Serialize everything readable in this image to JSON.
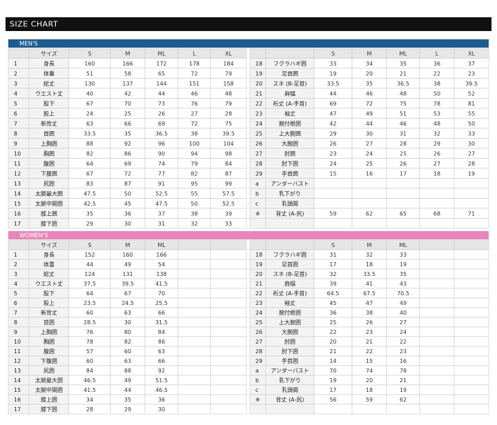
{
  "header": {
    "title": "SIZE CHART"
  },
  "men": {
    "title": "MEN'S",
    "size_label": "サイズ",
    "sizes": [
      "S",
      "M",
      "ML",
      "L",
      "XL"
    ],
    "left_rows": [
      [
        1,
        "身長",
        160,
        166,
        172,
        178,
        184
      ],
      [
        2,
        "体重",
        51,
        58,
        65,
        72,
        79
      ],
      [
        3,
        "総丈",
        130,
        137,
        144,
        151,
        158
      ],
      [
        4,
        "ウエスト丈",
        40,
        42,
        44,
        46,
        48
      ],
      [
        5,
        "股下",
        67,
        70,
        73,
        76,
        79
      ],
      [
        6,
        "股上",
        24,
        25,
        26,
        27,
        28
      ],
      [
        7,
        "新背丈",
        63,
        66,
        69,
        72,
        75
      ],
      [
        8,
        "首囲",
        33.5,
        35,
        36.5,
        38,
        39.5
      ],
      [
        9,
        "上胸囲",
        88,
        92,
        96,
        100,
        104
      ],
      [
        10,
        "胸囲",
        82,
        86,
        90,
        94,
        98
      ],
      [
        11,
        "腹囲",
        64,
        69,
        74,
        79,
        84
      ],
      [
        12,
        "下腹囲",
        67,
        72,
        77,
        82,
        87
      ],
      [
        13,
        "尻囲",
        83,
        87,
        91,
        95,
        99
      ],
      [
        14,
        "太腿最大囲",
        47.5,
        50,
        52.5,
        55,
        57.5
      ],
      [
        15,
        "太腿中間囲",
        42.5,
        45,
        47.5,
        50,
        52.5
      ],
      [
        16,
        "膝上囲",
        35,
        36,
        37,
        38,
        39
      ],
      [
        17,
        "膝下囲",
        29,
        30,
        31,
        32,
        33
      ]
    ],
    "right_rows": [
      [
        18,
        "フクラハギ囲",
        33,
        34,
        35,
        36,
        37
      ],
      [
        19,
        "足首囲",
        19,
        20,
        21,
        22,
        23
      ],
      [
        20,
        "スネ (B-足首)",
        33.5,
        35,
        36.5,
        38,
        39.5
      ],
      [
        21,
        "肩幅",
        44,
        46,
        48,
        50,
        52
      ],
      [
        22,
        "裄丈 (A-手首)",
        69,
        72,
        75,
        78,
        81
      ],
      [
        23,
        "袖丈",
        47,
        49,
        51,
        53,
        55
      ],
      [
        24,
        "腕付根囲",
        42,
        44,
        46,
        48,
        50
      ],
      [
        25,
        "上大腕囲",
        29,
        30,
        31,
        32,
        33
      ],
      [
        26,
        "大腕囲",
        26,
        27,
        28,
        29,
        30
      ],
      [
        27,
        "肘囲",
        23,
        24,
        25,
        26,
        27
      ],
      [
        28,
        "肘下囲",
        24,
        25,
        26,
        27,
        28
      ],
      [
        29,
        "手首囲",
        15,
        16,
        17,
        18,
        19
      ],
      [
        "a",
        "アンダーバスト"
      ],
      [
        "b",
        "乳下がり"
      ],
      [
        "c",
        "乳頭間"
      ],
      [
        "※",
        "背丈 (A-尻)",
        59,
        62,
        65,
        68,
        71
      ]
    ]
  },
  "women": {
    "title": "WOMEN'S",
    "size_label": "サイズ",
    "sizes": [
      "S",
      "M",
      "ML"
    ],
    "left_rows": [
      [
        1,
        "身長",
        152,
        160,
        166
      ],
      [
        2,
        "体重",
        44,
        49,
        54
      ],
      [
        3,
        "総丈",
        124,
        131,
        138
      ],
      [
        4,
        "ウエスト丈",
        37.5,
        39.5,
        41.5
      ],
      [
        5,
        "股下",
        64,
        67,
        70
      ],
      [
        6,
        "股上",
        23.5,
        24.5,
        25.5
      ],
      [
        7,
        "新背丈",
        60,
        63,
        66
      ],
      [
        8,
        "首囲",
        28.5,
        30,
        31.5
      ],
      [
        9,
        "上胸囲",
        76,
        80,
        84
      ],
      [
        10,
        "胸囲",
        78,
        82,
        86
      ],
      [
        11,
        "腹囲",
        57,
        60,
        63
      ],
      [
        12,
        "下腹囲",
        60,
        63,
        66
      ],
      [
        13,
        "尻囲",
        84,
        88,
        92
      ],
      [
        14,
        "太腿最大囲",
        46.5,
        49,
        51.5
      ],
      [
        15,
        "太腿中間囲",
        41.5,
        44,
        46.5
      ],
      [
        16,
        "膝上囲",
        34,
        35,
        36
      ],
      [
        17,
        "膝下囲",
        28,
        29,
        30
      ]
    ],
    "right_rows": [
      [
        18,
        "フクラハギ囲",
        31,
        32,
        33
      ],
      [
        19,
        "足首囲",
        17,
        18,
        19
      ],
      [
        20,
        "スネ (B-足首)",
        32,
        33.5,
        35
      ],
      [
        21,
        "肩幅",
        39,
        41,
        43
      ],
      [
        22,
        "裄丈 (A-手首)",
        64.5,
        67.5,
        70.5
      ],
      [
        23,
        "袖丈",
        45,
        47,
        49
      ],
      [
        24,
        "腕付根囲",
        36,
        38,
        40
      ],
      [
        25,
        "上大腕囲",
        25,
        26,
        27
      ],
      [
        26,
        "大腕囲",
        22,
        23,
        24
      ],
      [
        27,
        "肘囲",
        20,
        21,
        22
      ],
      [
        28,
        "肘下囲",
        21,
        22,
        23
      ],
      [
        29,
        "手首囲",
        14,
        15,
        16
      ],
      [
        "a",
        "アンダーバスト",
        70,
        74,
        78
      ],
      [
        "b",
        "乳下がり",
        19,
        20,
        21
      ],
      [
        "c",
        "乳頭間",
        17,
        18,
        19
      ],
      [
        "※",
        "背丈 (A-尻)",
        56,
        59,
        62
      ]
    ]
  }
}
